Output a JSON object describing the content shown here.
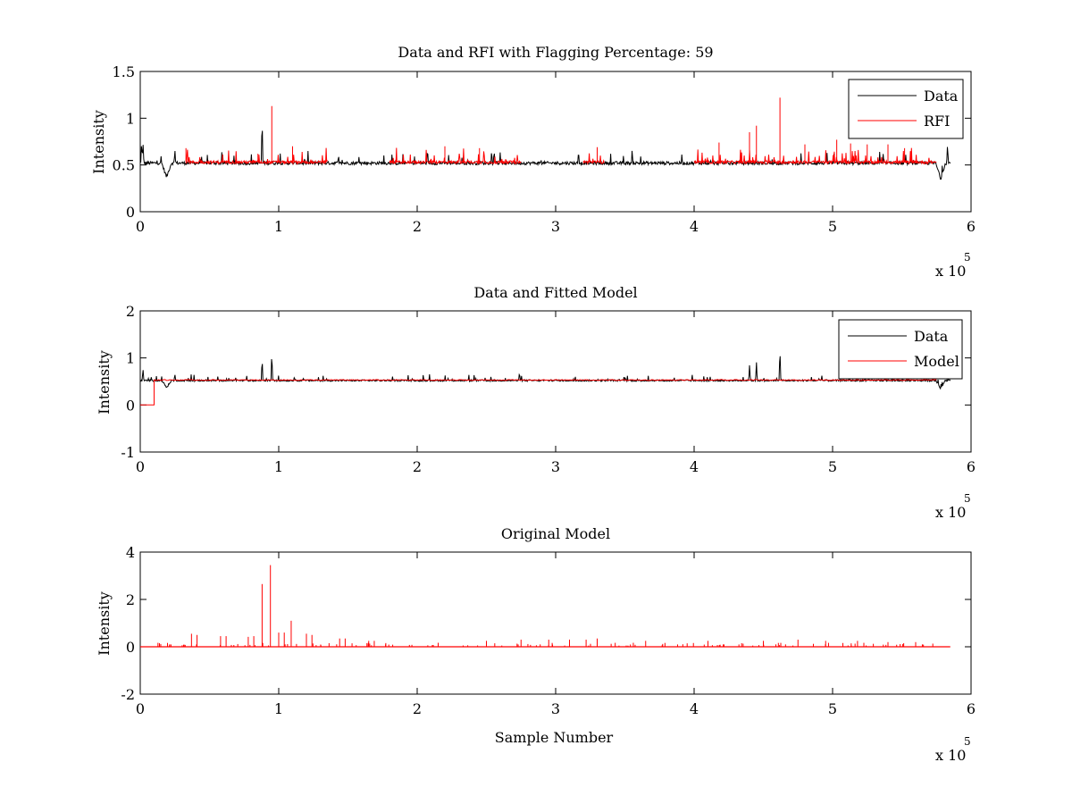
{
  "chart_data": [
    {
      "type": "line",
      "title": "Data and RFI with Flagging Percentage: 59",
      "xlabel": "",
      "ylabel": "Intensity",
      "xlim": [
        0,
        6
      ],
      "ylim": [
        0,
        1.5
      ],
      "x_scale_label": "x 10",
      "x_scale_exponent": "5",
      "x_ticks": [
        "0",
        "1",
        "2",
        "3",
        "4",
        "5",
        "6"
      ],
      "y_ticks": [
        "0",
        "0.5",
        "1",
        "1.5"
      ],
      "legend": {
        "position": "top-right",
        "entries": [
          {
            "name": "Data",
            "color": "#000000"
          },
          {
            "name": "RFI",
            "color": "#ff0000"
          }
        ]
      },
      "series": [
        {
          "name": "Data",
          "color": "#000000",
          "baseline": 0.52,
          "features": [
            [
              0.01,
              0.76
            ],
            [
              0.02,
              0.74
            ],
            [
              0.19,
              0.37
            ],
            [
              0.25,
              0.64
            ],
            [
              0.88,
              1.0
            ],
            [
              5.78,
              0.35
            ],
            [
              5.83,
              0.72
            ]
          ]
        },
        {
          "name": "RFI",
          "color": "#ff0000",
          "baseline": 0.53,
          "ranges": [
            [
              0.33,
              0.9
            ],
            [
              0.9,
              1.35
            ],
            [
              1.8,
              2.75
            ],
            [
              3.2,
              3.35
            ],
            [
              4.0,
              4.92
            ],
            [
              4.92,
              5.75
            ]
          ],
          "spikes": [
            [
              0.33,
              0.68
            ],
            [
              0.85,
              0.62
            ],
            [
              0.95,
              1.13
            ],
            [
              1.1,
              0.7
            ],
            [
              2.2,
              0.7
            ],
            [
              2.45,
              0.68
            ],
            [
              3.3,
              0.69
            ],
            [
              4.18,
              0.74
            ],
            [
              4.4,
              0.85
            ],
            [
              4.45,
              0.92
            ],
            [
              4.62,
              1.22
            ],
            [
              4.8,
              0.72
            ],
            [
              5.03,
              0.77
            ],
            [
              5.13,
              0.73
            ],
            [
              5.25,
              0.72
            ],
            [
              5.4,
              0.72
            ],
            [
              5.52,
              0.68
            ]
          ]
        }
      ]
    },
    {
      "type": "line",
      "title": "Data and Fitted Model",
      "xlabel": "",
      "ylabel": "Intensity",
      "xlim": [
        0,
        6
      ],
      "ylim": [
        -1,
        2
      ],
      "x_scale_label": "x 10",
      "x_scale_exponent": "5",
      "x_ticks": [
        "0",
        "1",
        "2",
        "3",
        "4",
        "5",
        "6"
      ],
      "y_ticks": [
        "-1",
        "0",
        "1",
        "2"
      ],
      "legend": {
        "position": "top-right",
        "entries": [
          {
            "name": "Data",
            "color": "#000000"
          },
          {
            "name": "Model",
            "color": "#ff0000"
          }
        ]
      },
      "series": [
        {
          "name": "Data",
          "color": "#000000",
          "baseline": 0.52,
          "spikes": [
            [
              0.02,
              0.76
            ],
            [
              0.19,
              0.37
            ],
            [
              0.25,
              0.64
            ],
            [
              0.88,
              1.0
            ],
            [
              0.95,
              1.13
            ],
            [
              4.4,
              0.85
            ],
            [
              4.45,
              0.92
            ],
            [
              4.62,
              1.22
            ],
            [
              5.78,
              0.35
            ]
          ]
        },
        {
          "name": "Model",
          "color": "#ff0000",
          "baseline": 0.53,
          "step": [
            [
              0.0,
              0.0
            ],
            [
              0.1,
              0.0
            ],
            [
              0.1,
              0.53
            ]
          ]
        }
      ]
    },
    {
      "type": "line",
      "title": "Original Model",
      "xlabel": "Sample Number",
      "ylabel": "Intensity",
      "xlim": [
        0,
        6
      ],
      "ylim": [
        -2,
        4
      ],
      "x_scale_label": "x 10",
      "x_scale_exponent": "5",
      "x_ticks": [
        "0",
        "1",
        "2",
        "3",
        "4",
        "5",
        "6"
      ],
      "y_ticks": [
        "-2",
        "0",
        "2",
        "4"
      ],
      "series": [
        {
          "name": "",
          "color": "#ff0000",
          "baseline": 0,
          "spikes": [
            [
              0.37,
              0.55
            ],
            [
              0.41,
              0.5
            ],
            [
              0.58,
              0.45
            ],
            [
              0.62,
              0.45
            ],
            [
              0.78,
              0.42
            ],
            [
              0.82,
              0.45
            ],
            [
              0.88,
              2.65
            ],
            [
              0.94,
              3.45
            ],
            [
              1.0,
              0.6
            ],
            [
              1.04,
              0.6
            ],
            [
              1.09,
              1.1
            ],
            [
              1.2,
              0.55
            ],
            [
              1.24,
              0.5
            ],
            [
              1.44,
              0.35
            ],
            [
              1.48,
              0.35
            ],
            [
              1.65,
              0.25
            ],
            [
              1.69,
              0.25
            ],
            [
              2.5,
              0.25
            ],
            [
              2.75,
              0.3
            ],
            [
              2.95,
              0.3
            ],
            [
              3.1,
              0.3
            ],
            [
              3.22,
              0.3
            ],
            [
              3.3,
              0.35
            ],
            [
              3.65,
              0.25
            ],
            [
              4.1,
              0.25
            ],
            [
              4.5,
              0.25
            ],
            [
              4.75,
              0.3
            ],
            [
              4.95,
              0.25
            ],
            [
              5.18,
              0.25
            ],
            [
              5.4,
              0.2
            ],
            [
              5.6,
              0.2
            ]
          ]
        }
      ]
    }
  ]
}
